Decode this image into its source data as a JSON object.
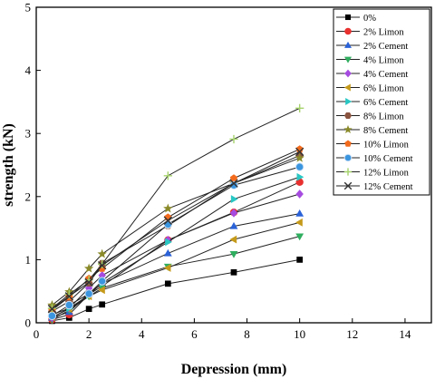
{
  "chart_data": {
    "type": "line",
    "title": "",
    "xlabel": "Depression (mm)",
    "ylabel": "strength (kN)",
    "xlim": [
      0,
      15
    ],
    "ylim": [
      0,
      5
    ],
    "xticks": [
      0,
      2,
      4,
      6,
      8,
      10,
      12,
      14
    ],
    "yticks": [
      0,
      1,
      2,
      3,
      4,
      5
    ],
    "grid": false,
    "legend_position": "top-right",
    "x": [
      0.6,
      1.25,
      2.0,
      2.5,
      5.0,
      7.5,
      10.0
    ],
    "series": [
      {
        "name": "0%",
        "marker": "square",
        "color": "#000000",
        "values": [
          0.03,
          0.08,
          0.22,
          0.29,
          0.62,
          0.8,
          1.0
        ]
      },
      {
        "name": "2% Limon",
        "marker": "circle",
        "color": "#e8312f",
        "values": [
          0.05,
          0.13,
          0.45,
          0.58,
          1.31,
          1.75,
          2.23
        ]
      },
      {
        "name": "2% Cement",
        "marker": "triangle-up",
        "color": "#2a62d8",
        "values": [
          0.08,
          0.17,
          0.47,
          0.62,
          1.1,
          1.53,
          1.73
        ]
      },
      {
        "name": "4% Limon",
        "marker": "triangle-down",
        "color": "#2fae5f",
        "values": [
          0.05,
          0.2,
          0.42,
          0.55,
          0.89,
          1.09,
          1.37
        ]
      },
      {
        "name": "4% Cement",
        "marker": "diamond",
        "color": "#a64be0",
        "values": [
          0.08,
          0.23,
          0.55,
          0.75,
          1.31,
          1.74,
          2.04
        ]
      },
      {
        "name": "6% Limon",
        "marker": "triangle-left",
        "color": "#c59a1a",
        "values": [
          0.09,
          0.22,
          0.42,
          0.52,
          0.87,
          1.32,
          1.59
        ]
      },
      {
        "name": "6% Cement",
        "marker": "triangle-right",
        "color": "#29c7c4",
        "values": [
          0.13,
          0.23,
          0.44,
          0.63,
          1.28,
          1.96,
          2.31
        ]
      },
      {
        "name": "8% Limon",
        "marker": "hexagon",
        "color": "#8a5440",
        "values": [
          0.18,
          0.34,
          0.63,
          0.94,
          1.54,
          2.21,
          2.65
        ]
      },
      {
        "name": "8% Cement",
        "marker": "star",
        "color": "#8a8a2a",
        "values": [
          0.28,
          0.49,
          0.86,
          1.09,
          1.81,
          2.21,
          2.61
        ]
      },
      {
        "name": "10% Limon",
        "marker": "pentagon",
        "color": "#f26b1d",
        "values": [
          0.2,
          0.41,
          0.7,
          0.86,
          1.67,
          2.29,
          2.75
        ]
      },
      {
        "name": "10% Cement",
        "marker": "circle-shaded",
        "color": "#3b95df",
        "values": [
          0.11,
          0.28,
          0.46,
          0.66,
          1.56,
          2.18,
          2.47
        ]
      },
      {
        "name": "12% Limon",
        "marker": "plus",
        "color": "#a6d36b",
        "values": [
          0.23,
          0.45,
          0.68,
          0.93,
          2.33,
          2.91,
          3.4
        ]
      },
      {
        "name": "12% Cement",
        "marker": "x",
        "color": "#333333",
        "values": [
          0.22,
          0.42,
          0.64,
          0.91,
          1.62,
          2.21,
          2.71
        ]
      }
    ]
  }
}
